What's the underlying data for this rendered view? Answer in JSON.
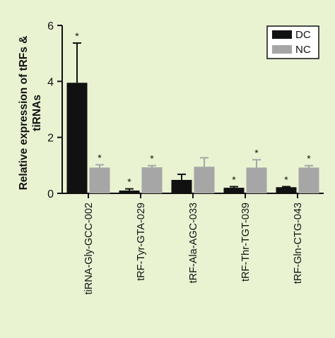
{
  "chart_data": {
    "type": "bar",
    "ylabel_lines": [
      "Relative expression of tRFs &",
      "tiRNAs"
    ],
    "xlabel": "",
    "ylim": [
      0,
      6
    ],
    "yticks": [
      "0",
      "2",
      "4",
      "6"
    ],
    "categories": [
      "tiRNA-Gly-GCC-002",
      "tRF-Tyr-GTA-029",
      "tRF-Ala-AGC-033",
      "tRF-Thr-TGT-039",
      "tRF-Gln-CTG-043"
    ],
    "series": [
      {
        "name": "DC",
        "color": "#111111",
        "values": [
          3.95,
          0.1,
          0.48,
          0.2,
          0.22
        ],
        "error": [
          1.42,
          0.06,
          0.2,
          0.04,
          0.02
        ],
        "significance": [
          "*",
          "*",
          "",
          "*",
          "*"
        ]
      },
      {
        "name": "NC",
        "color": "#a6a6a6",
        "values": [
          0.92,
          0.93,
          0.95,
          0.92,
          0.92
        ],
        "error": [
          0.1,
          0.06,
          0.32,
          0.28,
          0.07
        ],
        "significance": [
          "*",
          "*",
          "",
          "*",
          "*"
        ]
      }
    ],
    "legend": {
      "placement": "top-right",
      "entries": [
        "DC",
        "NC"
      ]
    }
  }
}
